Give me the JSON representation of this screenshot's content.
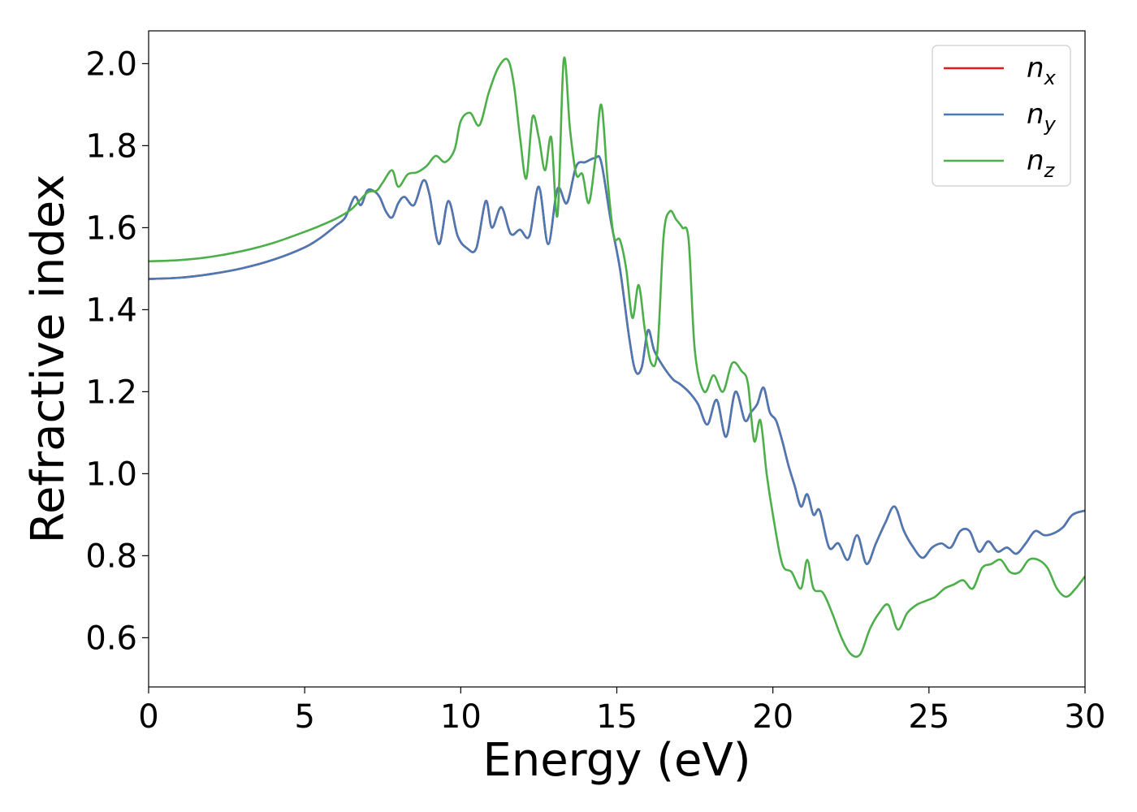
{
  "chart_data": {
    "type": "line",
    "xlabel": "Energy (eV)",
    "ylabel": "Refractive index",
    "xlim": [
      0,
      30
    ],
    "ylim": [
      0.48,
      2.08
    ],
    "xticks": [
      0,
      5,
      10,
      15,
      20,
      25,
      30
    ],
    "xtick_labels": [
      "0",
      "5",
      "10",
      "15",
      "20",
      "25",
      "30"
    ],
    "yticks": [
      0.6,
      0.8,
      1.0,
      1.2,
      1.4,
      1.6,
      1.8,
      2.0
    ],
    "ytick_labels": [
      "0.6",
      "0.8",
      "1.0",
      "1.2",
      "1.4",
      "1.6",
      "1.8",
      "2.0"
    ],
    "grid": false,
    "legend_position": "top-right",
    "series": [
      {
        "name": "n_x",
        "label_main": "n",
        "label_sub": "x",
        "color": "#e41a1c",
        "x": [
          0,
          1,
          2,
          3,
          4,
          5,
          5.5,
          6,
          6.3,
          6.6,
          6.8,
          7.0,
          7.2,
          7.4,
          7.6,
          7.8,
          8.0,
          8.2,
          8.5,
          8.8,
          9.0,
          9.3,
          9.6,
          9.9,
          10.2,
          10.5,
          10.8,
          11.0,
          11.3,
          11.6,
          11.9,
          12.2,
          12.5,
          12.8,
          13.1,
          13.4,
          13.7,
          14.0,
          14.3,
          14.5,
          14.8,
          15.1,
          15.4,
          15.6,
          15.8,
          16.0,
          16.2,
          16.5,
          16.8,
          17.0,
          17.3,
          17.6,
          17.9,
          18.2,
          18.5,
          18.8,
          19.1,
          19.3,
          19.5,
          19.7,
          19.9,
          20.1,
          20.3,
          20.5,
          20.7,
          20.9,
          21.1,
          21.3,
          21.5,
          21.8,
          22.1,
          22.4,
          22.7,
          23.0,
          23.3,
          23.6,
          23.9,
          24.2,
          24.5,
          24.8,
          25.1,
          25.4,
          25.7,
          26.0,
          26.3,
          26.6,
          26.9,
          27.2,
          27.5,
          27.8,
          28.1,
          28.4,
          28.7,
          29.0,
          29.3,
          29.6,
          30.0
        ],
        "values": [
          1.475,
          1.478,
          1.487,
          1.501,
          1.522,
          1.552,
          1.575,
          1.605,
          1.625,
          1.675,
          1.655,
          1.69,
          1.69,
          1.675,
          1.64,
          1.625,
          1.66,
          1.675,
          1.655,
          1.715,
          1.68,
          1.56,
          1.665,
          1.58,
          1.55,
          1.55,
          1.665,
          1.6,
          1.65,
          1.585,
          1.595,
          1.58,
          1.7,
          1.56,
          1.695,
          1.66,
          1.75,
          1.76,
          1.77,
          1.76,
          1.62,
          1.5,
          1.33,
          1.25,
          1.26,
          1.35,
          1.3,
          1.26,
          1.23,
          1.22,
          1.2,
          1.17,
          1.12,
          1.18,
          1.09,
          1.2,
          1.13,
          1.15,
          1.17,
          1.21,
          1.15,
          1.13,
          1.08,
          1.02,
          0.97,
          0.92,
          0.95,
          0.9,
          0.91,
          0.82,
          0.83,
          0.79,
          0.85,
          0.78,
          0.83,
          0.88,
          0.92,
          0.86,
          0.82,
          0.795,
          0.82,
          0.83,
          0.82,
          0.86,
          0.86,
          0.81,
          0.835,
          0.81,
          0.82,
          0.805,
          0.83,
          0.86,
          0.85,
          0.855,
          0.87,
          0.9,
          0.91
        ]
      },
      {
        "name": "n_y",
        "label_main": "n",
        "label_sub": "y",
        "color": "#4a79b3",
        "x": [
          0,
          1,
          2,
          3,
          4,
          5,
          5.5,
          6,
          6.3,
          6.6,
          6.8,
          7.0,
          7.2,
          7.4,
          7.6,
          7.8,
          8.0,
          8.2,
          8.5,
          8.8,
          9.0,
          9.3,
          9.6,
          9.9,
          10.2,
          10.5,
          10.8,
          11.0,
          11.3,
          11.6,
          11.9,
          12.2,
          12.5,
          12.8,
          13.1,
          13.4,
          13.7,
          14.0,
          14.3,
          14.5,
          14.8,
          15.1,
          15.4,
          15.6,
          15.8,
          16.0,
          16.2,
          16.5,
          16.8,
          17.0,
          17.3,
          17.6,
          17.9,
          18.2,
          18.5,
          18.8,
          19.1,
          19.3,
          19.5,
          19.7,
          19.9,
          20.1,
          20.3,
          20.5,
          20.7,
          20.9,
          21.1,
          21.3,
          21.5,
          21.8,
          22.1,
          22.4,
          22.7,
          23.0,
          23.3,
          23.6,
          23.9,
          24.2,
          24.5,
          24.8,
          25.1,
          25.4,
          25.7,
          26.0,
          26.3,
          26.6,
          26.9,
          27.2,
          27.5,
          27.8,
          28.1,
          28.4,
          28.7,
          29.0,
          29.3,
          29.6,
          30.0
        ],
        "values": [
          1.475,
          1.478,
          1.487,
          1.501,
          1.522,
          1.552,
          1.575,
          1.605,
          1.625,
          1.675,
          1.655,
          1.69,
          1.69,
          1.675,
          1.64,
          1.625,
          1.66,
          1.675,
          1.655,
          1.715,
          1.68,
          1.56,
          1.665,
          1.58,
          1.55,
          1.55,
          1.665,
          1.6,
          1.65,
          1.585,
          1.595,
          1.58,
          1.7,
          1.56,
          1.695,
          1.66,
          1.75,
          1.76,
          1.77,
          1.76,
          1.62,
          1.5,
          1.33,
          1.25,
          1.26,
          1.35,
          1.3,
          1.26,
          1.23,
          1.22,
          1.2,
          1.17,
          1.12,
          1.18,
          1.09,
          1.2,
          1.13,
          1.15,
          1.17,
          1.21,
          1.15,
          1.13,
          1.08,
          1.02,
          0.97,
          0.92,
          0.95,
          0.9,
          0.91,
          0.82,
          0.83,
          0.79,
          0.85,
          0.78,
          0.83,
          0.88,
          0.92,
          0.86,
          0.82,
          0.795,
          0.82,
          0.83,
          0.82,
          0.86,
          0.86,
          0.81,
          0.835,
          0.81,
          0.82,
          0.805,
          0.83,
          0.86,
          0.85,
          0.855,
          0.87,
          0.9,
          0.91
        ]
      },
      {
        "name": "n_z",
        "label_main": "n",
        "label_sub": "z",
        "color": "#4daf4a",
        "x": [
          0,
          1,
          2,
          3,
          4,
          5,
          5.5,
          6,
          6.5,
          7.0,
          7.3,
          7.5,
          7.8,
          8.0,
          8.3,
          8.6,
          8.9,
          9.2,
          9.5,
          9.8,
          10.0,
          10.3,
          10.6,
          10.9,
          11.2,
          11.5,
          11.7,
          11.9,
          12.1,
          12.3,
          12.5,
          12.7,
          12.9,
          13.1,
          13.3,
          13.5,
          13.7,
          13.9,
          14.1,
          14.3,
          14.5,
          14.7,
          14.9,
          15.1,
          15.3,
          15.5,
          15.7,
          15.9,
          16.1,
          16.3,
          16.5,
          16.7,
          16.9,
          17.1,
          17.3,
          17.5,
          17.8,
          18.1,
          18.4,
          18.7,
          19.0,
          19.2,
          19.4,
          19.6,
          19.8,
          20.0,
          20.3,
          20.6,
          20.9,
          21.1,
          21.3,
          21.6,
          21.9,
          22.2,
          22.5,
          22.8,
          23.1,
          23.4,
          23.7,
          24.0,
          24.3,
          24.6,
          24.9,
          25.2,
          25.5,
          25.8,
          26.1,
          26.4,
          26.7,
          27.0,
          27.3,
          27.6,
          27.9,
          28.2,
          28.5,
          28.8,
          29.1,
          29.4,
          29.7,
          30.0
        ],
        "values": [
          1.518,
          1.521,
          1.529,
          1.543,
          1.563,
          1.59,
          1.605,
          1.622,
          1.645,
          1.685,
          1.69,
          1.71,
          1.74,
          1.7,
          1.73,
          1.735,
          1.75,
          1.775,
          1.76,
          1.79,
          1.86,
          1.88,
          1.85,
          1.93,
          1.99,
          2.01,
          1.95,
          1.82,
          1.72,
          1.87,
          1.82,
          1.74,
          1.82,
          1.63,
          2.01,
          1.84,
          1.73,
          1.73,
          1.66,
          1.76,
          1.9,
          1.72,
          1.58,
          1.57,
          1.5,
          1.38,
          1.46,
          1.35,
          1.27,
          1.3,
          1.58,
          1.64,
          1.62,
          1.6,
          1.57,
          1.3,
          1.2,
          1.24,
          1.2,
          1.27,
          1.25,
          1.22,
          1.08,
          1.13,
          1.0,
          0.9,
          0.78,
          0.76,
          0.72,
          0.79,
          0.72,
          0.71,
          0.66,
          0.6,
          0.56,
          0.56,
          0.62,
          0.66,
          0.68,
          0.62,
          0.66,
          0.68,
          0.69,
          0.7,
          0.72,
          0.73,
          0.74,
          0.72,
          0.77,
          0.78,
          0.79,
          0.76,
          0.76,
          0.79,
          0.79,
          0.77,
          0.72,
          0.7,
          0.72,
          0.75
        ]
      }
    ]
  }
}
